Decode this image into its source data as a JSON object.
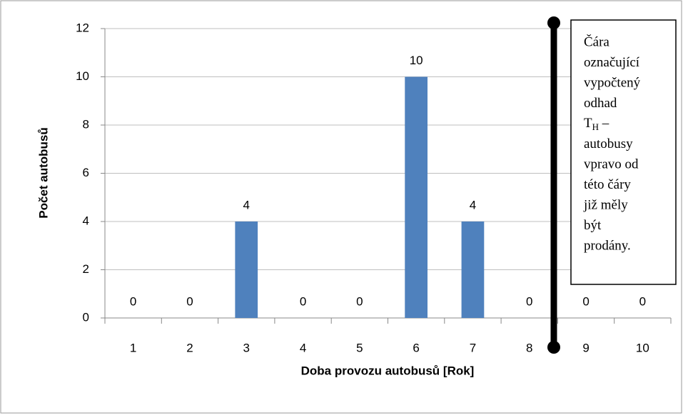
{
  "chart_data": {
    "type": "bar",
    "categories": [
      "1",
      "2",
      "3",
      "4",
      "5",
      "6",
      "7",
      "8",
      "9",
      "10"
    ],
    "values": [
      0,
      0,
      4,
      0,
      0,
      10,
      4,
      0,
      0,
      0
    ],
    "color": "#4f81bd",
    "ylim": [
      0,
      12
    ],
    "yticks": [
      0,
      2,
      4,
      6,
      8,
      10,
      12
    ],
    "grid": true,
    "xlabel": "Doba provozu autobusů [Rok]",
    "ylabel": "Počet autobusů",
    "annotation": {
      "lines_before": [
        "Čára",
        "označující",
        "vypočtený",
        "odhad"
      ],
      "symbol": "T",
      "subscript": "H",
      "symbol_suffix": " –",
      "lines_after": [
        "autobusy",
        "vpravo od",
        "této čáry",
        "již měly",
        "být",
        "prodány."
      ]
    }
  }
}
